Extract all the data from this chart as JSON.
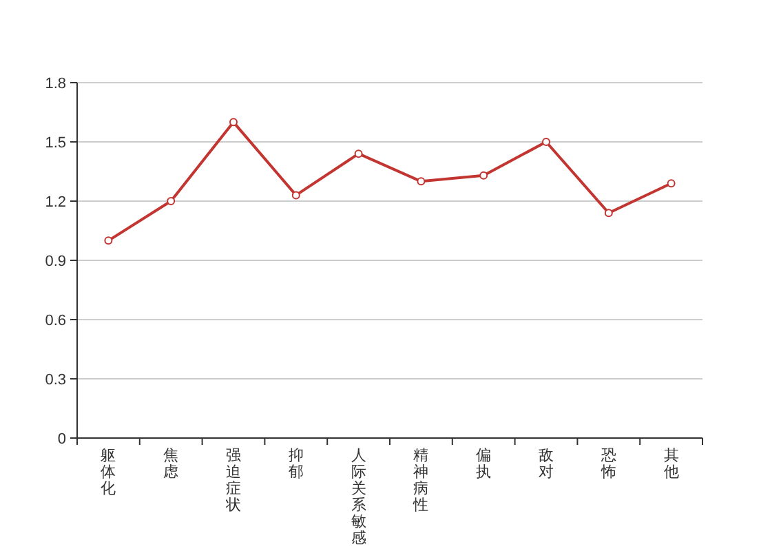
{
  "chart_data": {
    "type": "line",
    "categories": [
      "躯体化",
      "焦虑",
      "强迫症状",
      "抑郁",
      "人际关系敏感",
      "精神病性",
      "偏执",
      "敌对",
      "恐怖",
      "其他"
    ],
    "series": [
      {
        "color": "#c23531",
        "values": [
          1.0,
          1.2,
          1.6,
          1.23,
          1.44,
          1.3,
          1.33,
          1.5,
          1.14,
          1.29
        ]
      }
    ],
    "ylim": [
      0,
      1.8
    ],
    "yticks": [
      0,
      0.3,
      0.6,
      0.9,
      1.2,
      1.5,
      1.8
    ],
    "grid": "y",
    "marker": "circle",
    "line_style": "solid"
  }
}
